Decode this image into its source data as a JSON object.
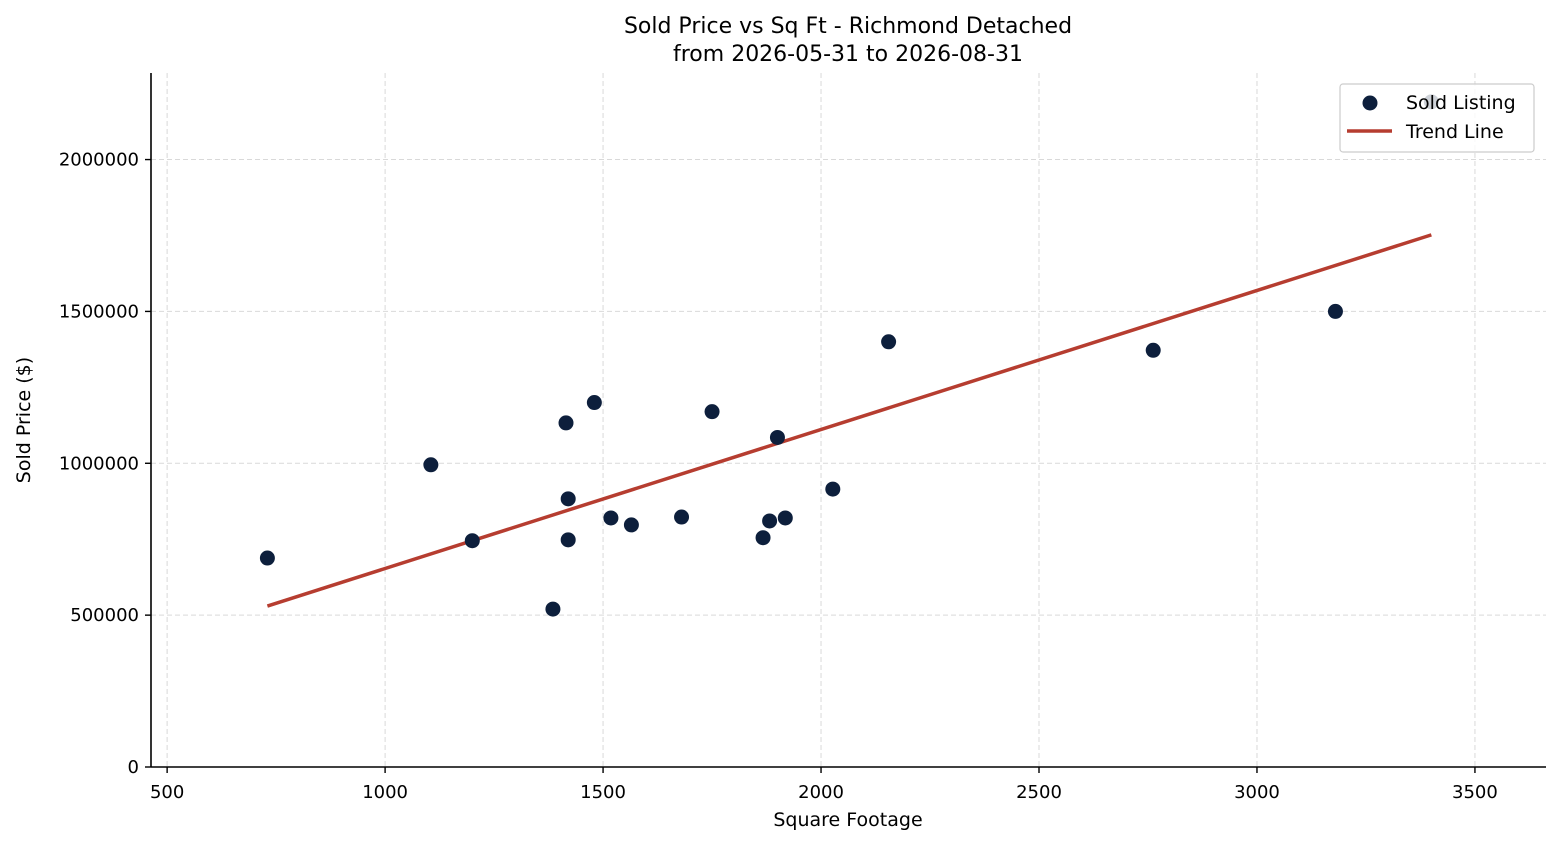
{
  "chart_data": {
    "type": "scatter",
    "title": "Sold Price vs Sq Ft - Richmond Detached",
    "subtitle": "from 2026-05-31 to 2026-08-31",
    "xlabel": "Square Footage",
    "ylabel": "Sold Price ($)",
    "xlim": [
      463,
      3663
    ],
    "ylim": [
      0,
      2285000
    ],
    "xticks": [
      500,
      1000,
      1500,
      2000,
      2500,
      3000,
      3500
    ],
    "yticks": [
      0,
      500000,
      1000000,
      1500000,
      2000000
    ],
    "grid": true,
    "legend_position": "top-right",
    "legend": [
      "Sold Listing",
      "Trend Line"
    ],
    "colors": {
      "points": "#0d1f3c",
      "trend": "#b63d30",
      "grid": "#d9d9d9"
    },
    "series": [
      {
        "name": "Sold Listing",
        "type": "scatter",
        "points": [
          {
            "x": 730,
            "y": 688000
          },
          {
            "x": 1105,
            "y": 995000
          },
          {
            "x": 1200,
            "y": 745000
          },
          {
            "x": 1385,
            "y": 520000
          },
          {
            "x": 1415,
            "y": 1133000
          },
          {
            "x": 1420,
            "y": 883000
          },
          {
            "x": 1420,
            "y": 748000
          },
          {
            "x": 1480,
            "y": 1200000
          },
          {
            "x": 1518,
            "y": 820000
          },
          {
            "x": 1565,
            "y": 797000
          },
          {
            "x": 1680,
            "y": 823000
          },
          {
            "x": 1750,
            "y": 1170000
          },
          {
            "x": 1867,
            "y": 755000
          },
          {
            "x": 1882,
            "y": 810000
          },
          {
            "x": 1900,
            "y": 1085000
          },
          {
            "x": 1918,
            "y": 820000
          },
          {
            "x": 2027,
            "y": 915000
          },
          {
            "x": 2155,
            "y": 1400000
          },
          {
            "x": 2762,
            "y": 1372000
          },
          {
            "x": 3180,
            "y": 1500000
          },
          {
            "x": 3400,
            "y": 2190000
          }
        ]
      },
      {
        "name": "Trend Line",
        "type": "line",
        "points": [
          {
            "x": 730,
            "y": 530000
          },
          {
            "x": 3400,
            "y": 1752000
          }
        ]
      }
    ]
  }
}
